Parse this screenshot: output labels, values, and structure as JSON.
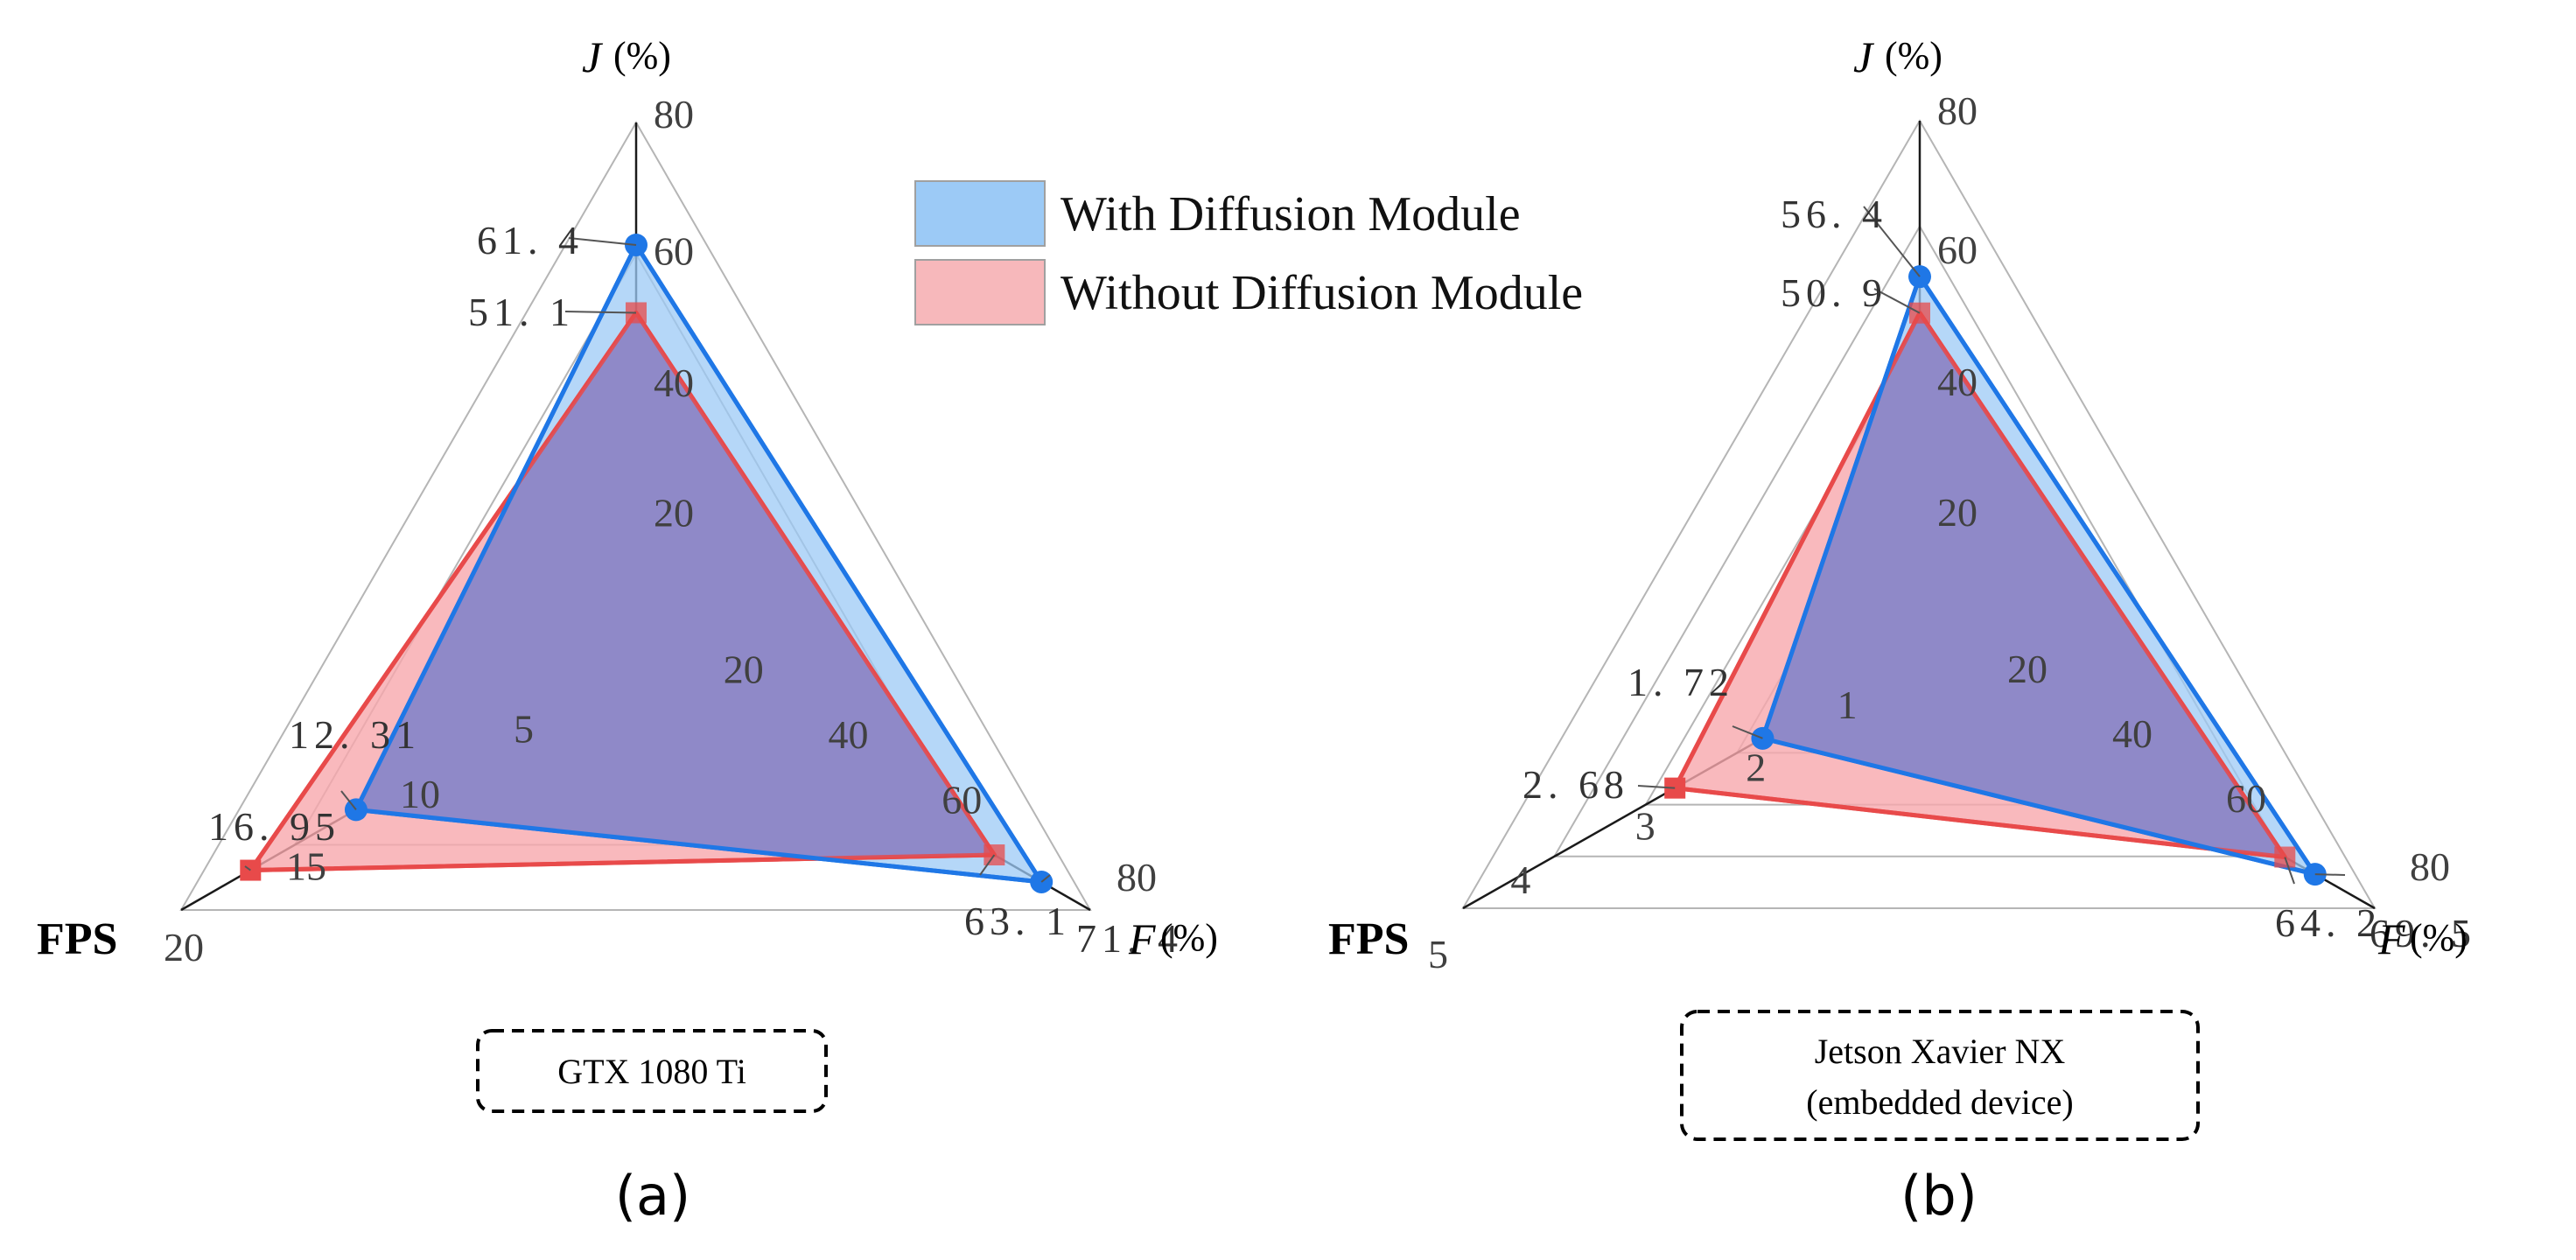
{
  "legend": {
    "with_label": "With Diffusion Module",
    "without_label": "Without Diffusion Module",
    "with_color": "#1f77e6",
    "with_fill": "#9ccaf6",
    "without_color": "#e84a4a",
    "without_fill": "#f7a8ac"
  },
  "chart_data": [
    {
      "type": "radar",
      "panel": "(a)",
      "device": [
        "GTX 1080 Ti"
      ],
      "axes": [
        {
          "name": "J",
          "unit": "(%)",
          "max": 80,
          "ticks": [
            "20",
            "40",
            "60",
            "80"
          ]
        },
        {
          "name": "F",
          "unit": "(%)",
          "max": 80,
          "ticks": [
            "20",
            "40",
            "60",
            "80"
          ]
        },
        {
          "name": "FPS",
          "unit": "",
          "max": 20,
          "ticks": [
            "5",
            "10",
            "15",
            "20"
          ]
        }
      ],
      "series": [
        {
          "name": "With Diffusion Module",
          "values": [
            61.4,
            71.4,
            12.31
          ],
          "labels": [
            "61. 4",
            "71. 4",
            "12. 31"
          ]
        },
        {
          "name": "Without Diffusion Module",
          "values": [
            51.1,
            63.1,
            16.95
          ],
          "labels": [
            "51. 1",
            "63. 1",
            "16. 95"
          ]
        }
      ]
    },
    {
      "type": "radar",
      "panel": "(b)",
      "device": [
        "Jetson Xavier NX",
        "(embedded device)"
      ],
      "axes": [
        {
          "name": "J",
          "unit": "(%)",
          "max": 80,
          "ticks": [
            "20",
            "40",
            "60",
            "80"
          ]
        },
        {
          "name": "F",
          "unit": "(%)",
          "max": 80,
          "ticks": [
            "20",
            "40",
            "60",
            "80"
          ]
        },
        {
          "name": "FPS",
          "unit": "",
          "max": 5,
          "ticks": [
            "1",
            "2",
            "3",
            "4",
            "5"
          ]
        }
      ],
      "series": [
        {
          "name": "With Diffusion Module",
          "values": [
            56.4,
            69.5,
            1.72
          ],
          "labels": [
            "56. 4",
            "69. 5",
            "1. 72"
          ]
        },
        {
          "name": "Without Diffusion Module",
          "values": [
            50.9,
            64.2,
            2.68
          ],
          "labels": [
            "50. 9",
            "64. 2",
            "2. 68"
          ]
        }
      ]
    }
  ]
}
